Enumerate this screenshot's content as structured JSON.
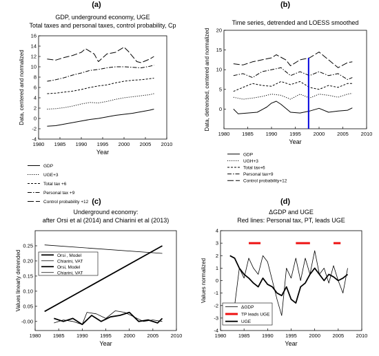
{
  "panels": [
    {
      "letter": "(a)",
      "title_lines": [
        "GDP, underground economy, UGE",
        "Total taxes and personal taxes, control probability, Cp"
      ],
      "xlabel": "Year",
      "ylabel": "Data, centered and normalized"
    },
    {
      "letter": "(b)",
      "title_lines": [
        "Time series, detrended and LOESS smoothed"
      ],
      "xlabel": "Year",
      "ylabel": "Data, detrended, centered and normalized"
    },
    {
      "letter": "(c)",
      "title_lines": [
        "Underground economy:",
        "after Orsi et al (2014) and Chiarini et al (2013)"
      ],
      "xlabel": "Year",
      "ylabel": "Values linearly detrended"
    },
    {
      "letter": "(d)",
      "title_lines": [
        "ΔGDP and UGE",
        "Red lines: Personal tax, PT, leads UGE"
      ],
      "xlabel": "Year",
      "ylabel": "Values normalized"
    }
  ],
  "chart_data": [
    {
      "type": "line",
      "panel": "(a)",
      "title": "GDP, underground economy, UGE / Total taxes and personal taxes, control probability, Cp",
      "xlabel": "Year",
      "ylabel": "Data, centered and normalized",
      "xlim": [
        1980,
        2010
      ],
      "ylim": [
        -4,
        16
      ],
      "xticks": [
        1980,
        1985,
        1990,
        1995,
        2000,
        2005,
        2010
      ],
      "yticks": [
        -4,
        -2,
        0,
        2,
        4,
        6,
        8,
        10,
        12,
        14,
        16
      ],
      "legend_position": "below",
      "series": [
        {
          "name": "GDP",
          "style": "solid",
          "x": [
            1982,
            1984,
            1986,
            1988,
            1990,
            1992,
            1994,
            1996,
            1998,
            2000,
            2002,
            2004,
            2006,
            2007
          ],
          "y": [
            -1.5,
            -1.4,
            -1.1,
            -0.8,
            -0.5,
            -0.2,
            0.0,
            0.3,
            0.6,
            0.8,
            1.0,
            1.3,
            1.6,
            1.8
          ]
        },
        {
          "name": "UGE+3",
          "style": "dotted",
          "x": [
            1982,
            1984,
            1986,
            1988,
            1990,
            1992,
            1994,
            1996,
            1998,
            2000,
            2002,
            2004,
            2006,
            2007
          ],
          "y": [
            1.8,
            1.9,
            2.1,
            2.4,
            2.8,
            3.1,
            3.0,
            3.3,
            3.7,
            4.0,
            4.2,
            4.4,
            4.6,
            4.8
          ]
        },
        {
          "name": "Total tax +6",
          "style": "short-dash",
          "x": [
            1982,
            1984,
            1986,
            1988,
            1990,
            1992,
            1994,
            1996,
            1998,
            2000,
            2002,
            2004,
            2006,
            2007
          ],
          "y": [
            4.8,
            4.9,
            5.1,
            5.3,
            5.6,
            6.0,
            6.3,
            6.5,
            6.9,
            7.2,
            7.4,
            7.5,
            7.7,
            7.8
          ]
        },
        {
          "name": "Personal tax +9",
          "style": "dash-dot",
          "x": [
            1982,
            1984,
            1986,
            1988,
            1990,
            1992,
            1994,
            1996,
            1998,
            2000,
            2002,
            2004,
            2006,
            2007
          ],
          "y": [
            7.2,
            7.5,
            7.9,
            8.4,
            8.8,
            9.3,
            9.5,
            9.8,
            10.0,
            10.0,
            9.9,
            9.8,
            10.1,
            10.3
          ]
        },
        {
          "name": "Control probability +12",
          "style": "long-dash",
          "x": [
            1982,
            1984,
            1986,
            1988,
            1990,
            1991,
            1993,
            1994,
            1996,
            1998,
            2000,
            2001,
            2003,
            2004,
            2006,
            2007
          ],
          "y": [
            11.5,
            11.3,
            11.8,
            12.2,
            12.8,
            13.5,
            12.5,
            11.0,
            12.5,
            12.8,
            13.8,
            13.0,
            11.0,
            10.8,
            11.5,
            12.0
          ]
        }
      ]
    },
    {
      "type": "line",
      "panel": "(b)",
      "title": "Time series, detrended and LOESS smoothed",
      "xlabel": "Year",
      "ylabel": "Data, detrended, centered and normalized",
      "xlim": [
        1980,
        2010
      ],
      "ylim": [
        -5,
        20
      ],
      "xticks": [
        1980,
        1985,
        1990,
        1995,
        2000,
        2005,
        2010
      ],
      "yticks": [
        0,
        5,
        10,
        15,
        20
      ],
      "vertical_line": {
        "x": 1997.8,
        "y_from": -5,
        "y_to": 13,
        "color": "#0000dd"
      },
      "legend_position": "below",
      "series": [
        {
          "name": "GDP",
          "style": "solid",
          "x": [
            1982,
            1983,
            1985,
            1987,
            1989,
            1990,
            1991,
            1992,
            1994,
            1996,
            1998,
            2000,
            2002,
            2004,
            2006,
            2007
          ],
          "y": [
            0.0,
            -1.2,
            -1.0,
            -0.8,
            0.5,
            1.5,
            2.0,
            1.2,
            -0.8,
            -1.0,
            -0.5,
            0.2,
            -0.8,
            -0.5,
            -0.3,
            0.3
          ]
        },
        {
          "name": "UGH+3",
          "style": "dotted",
          "x": [
            1982,
            1984,
            1986,
            1988,
            1990,
            1992,
            1994,
            1996,
            1998,
            2000,
            2002,
            2004,
            2006,
            2007
          ],
          "y": [
            3.0,
            2.5,
            2.8,
            3.2,
            3.8,
            3.5,
            2.5,
            3.8,
            2.8,
            3.8,
            3.5,
            3.0,
            3.8,
            4.0
          ]
        },
        {
          "name": "Total tax+6",
          "style": "short-dash",
          "x": [
            1982,
            1984,
            1986,
            1988,
            1990,
            1992,
            1994,
            1996,
            1998,
            2000,
            2002,
            2004,
            2006,
            2007
          ],
          "y": [
            4.5,
            5.5,
            6.5,
            6.0,
            5.8,
            7.0,
            6.2,
            7.0,
            5.5,
            5.0,
            6.0,
            5.5,
            6.5,
            6.5
          ]
        },
        {
          "name": "Personal tax+9",
          "style": "dash-dot",
          "x": [
            1982,
            1984,
            1986,
            1988,
            1990,
            1992,
            1994,
            1996,
            1998,
            2000,
            2002,
            2004,
            2006,
            2007
          ],
          "y": [
            8.5,
            9.0,
            8.0,
            9.5,
            10.0,
            10.5,
            8.5,
            9.5,
            8.5,
            9.5,
            8.5,
            9.0,
            7.5,
            8.0
          ]
        },
        {
          "name": "Control probability+12",
          "style": "long-dash",
          "x": [
            1982,
            1984,
            1986,
            1988,
            1990,
            1991,
            1993,
            1994,
            1996,
            1998,
            2000,
            2001,
            2003,
            2004,
            2006,
            2007
          ],
          "y": [
            11.5,
            11.2,
            12.0,
            12.5,
            13.0,
            13.8,
            12.5,
            11.0,
            12.5,
            13.0,
            14.5,
            13.5,
            11.5,
            10.5,
            11.8,
            12.0
          ]
        }
      ]
    },
    {
      "type": "line",
      "panel": "(c)",
      "title": "Underground economy: / after Orsi et al (2014) and Chiarini et al (2013)",
      "xlabel": "Year",
      "ylabel": "Values linearly detrended",
      "xlim": [
        1980,
        2010
      ],
      "ylim": [
        -0.03,
        0.3
      ],
      "xticks": [
        1980,
        1985,
        1990,
        1995,
        2000,
        2005,
        2010
      ],
      "yticks": [
        -0.0,
        0.05,
        0.1,
        0.15,
        0.2,
        0.25
      ],
      "ytick_labels": [
        "-0.00",
        "0.05",
        "0.10",
        "0.15",
        "0.20",
        "0.25"
      ],
      "legend_position": "upper-left",
      "series": [
        {
          "name": "Orsi , Model",
          "style": "thick-solid",
          "x": [
            1982,
            2007
          ],
          "y": [
            0.033,
            0.25
          ]
        },
        {
          "name": "Chiarini, VAT",
          "style": "thin-solid",
          "x": [
            1982,
            2007
          ],
          "y": [
            0.253,
            0.225
          ]
        },
        {
          "name": "Orsi, Model",
          "style": "thick-solid",
          "x": [
            1984,
            1986,
            1988,
            1990,
            1992,
            1994,
            1996,
            1998,
            2000,
            2002,
            2004,
            2006,
            2007
          ],
          "y": [
            0.01,
            0.0,
            0.01,
            -0.01,
            0.02,
            0.0,
            0.015,
            0.02,
            0.03,
            0.0,
            0.005,
            -0.005,
            0.01
          ]
        },
        {
          "name": "Chiarini, VAT",
          "style": "thin-solid",
          "x": [
            1984,
            1986,
            1988,
            1990,
            1991,
            1993,
            1995,
            1997,
            1999,
            2001,
            2003,
            2005,
            2007
          ],
          "y": [
            -0.005,
            0.005,
            0.0,
            -0.01,
            0.03,
            0.025,
            0.01,
            0.035,
            0.03,
            0.015,
            0.0,
            0.005,
            0.0
          ]
        }
      ]
    },
    {
      "type": "line",
      "panel": "(d)",
      "title": "ΔGDP and UGE / Red lines: Personal tax, PT, leads UGE",
      "xlabel": "Year",
      "ylabel": "Values normalized",
      "xlim": [
        1980,
        2010
      ],
      "ylim": [
        -4,
        4
      ],
      "xticks": [
        1980,
        1985,
        1990,
        1995,
        2000,
        2005,
        2010
      ],
      "yticks": [
        -4,
        -3,
        -2,
        -1,
        0,
        1,
        2,
        3,
        4
      ],
      "legend_position": "lower-left",
      "series": [
        {
          "name": "ΔGDP",
          "style": "thin-solid",
          "x": [
            1983,
            1984,
            1985,
            1986,
            1987,
            1988,
            1989,
            1990,
            1991,
            1992,
            1993,
            1994,
            1995,
            1996,
            1997,
            1998,
            1999,
            2000,
            2001,
            2002,
            2003,
            2004,
            2005,
            2006,
            2007
          ],
          "y": [
            -2.0,
            1.0,
            0.2,
            1.8,
            1.0,
            0.5,
            2.0,
            1.5,
            0.0,
            -1.5,
            -2.8,
            1.0,
            0.2,
            1.8,
            0.0,
            1.8,
            0.5,
            2.4,
            0.5,
            1.0,
            -0.2,
            1.2,
            0.0,
            -1.0,
            1.0
          ]
        },
        {
          "name": "TP leads UGE",
          "style": "thick-red",
          "segments": [
            [
              1986,
              1988.5
            ],
            [
              1996,
              1999
            ],
            [
              2004,
              2005.5
            ]
          ],
          "y": 3.0,
          "color": "#ee1111"
        },
        {
          "name": "UGE",
          "style": "thick-solid",
          "x": [
            1982,
            1983,
            1984,
            1985,
            1986,
            1987,
            1988,
            1989,
            1990,
            1991,
            1992,
            1993,
            1994,
            1995,
            1996,
            1997,
            1998,
            1999,
            2000,
            2001,
            2002,
            2003,
            2004,
            2005,
            2006,
            2007
          ],
          "y": [
            2.0,
            1.8,
            1.0,
            0.5,
            0.2,
            -0.2,
            -0.5,
            0.2,
            -0.3,
            -0.5,
            -1.0,
            -1.2,
            -0.5,
            -1.5,
            -1.8,
            -0.5,
            -0.2,
            0.5,
            1.0,
            0.5,
            0.0,
            0.5,
            0.3,
            0.0,
            0.2,
            0.5
          ]
        }
      ]
    }
  ]
}
